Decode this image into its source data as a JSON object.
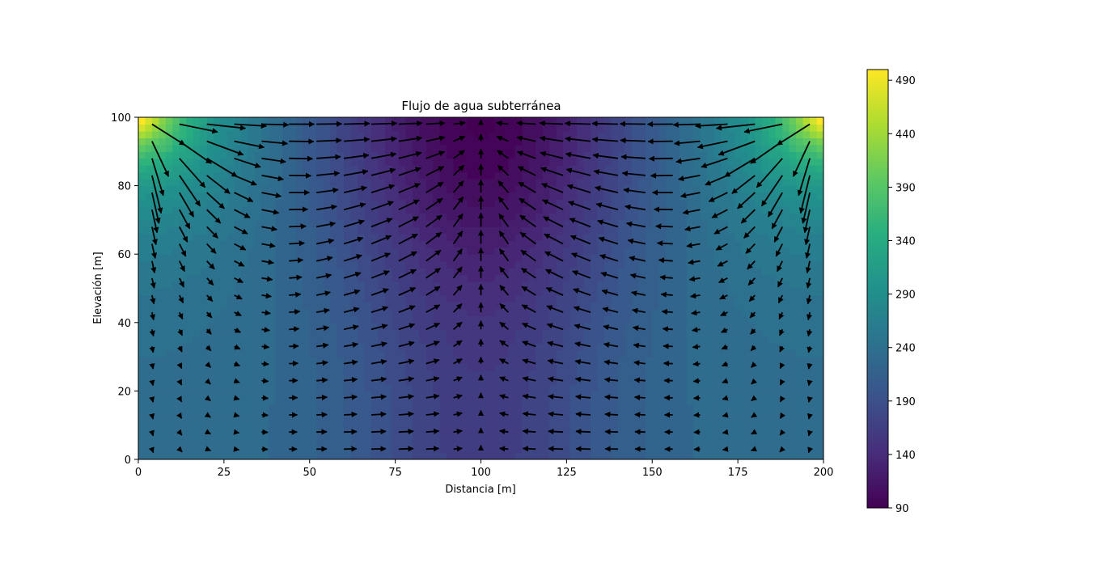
{
  "chart_data": {
    "type": "heatmap",
    "subtype": "filled-contour-with-quiver",
    "title": "Flujo de agua subterránea",
    "xlabel": "Distancia [m]",
    "ylabel": "Elevación [m]",
    "xlim": [
      0,
      200
    ],
    "ylim": [
      0,
      100
    ],
    "x_ticks": [
      0,
      25,
      50,
      75,
      100,
      125,
      150,
      175,
      200
    ],
    "y_ticks": [
      0,
      20,
      40,
      60,
      80,
      100
    ],
    "colormap": "viridis",
    "colorbar": {
      "range": [
        90,
        500
      ],
      "ticks": [
        90,
        140,
        190,
        240,
        290,
        340,
        390,
        440,
        490
      ],
      "position": "right"
    },
    "field_description": {
      "high_regions": "top-left and top-right corners (~490)",
      "low_region": "top center (~90-140)",
      "bottom_center_value": 165,
      "bottom_edges_value": 235
    },
    "quiver": {
      "grid_x_step": 8,
      "grid_y_step": 5,
      "color": "#000000"
    },
    "grid": false
  }
}
